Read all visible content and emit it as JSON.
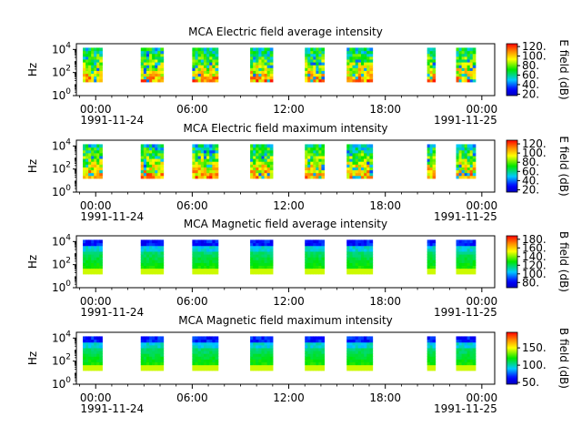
{
  "chart_data": [
    {
      "type": "heatmap",
      "title": "MCA  Electric field average intensity",
      "ylabel": "Hz",
      "yscale": "log",
      "ylim": [
        1,
        31623
      ],
      "y_ticks": [
        {
          "base": "10",
          "exp": "0"
        },
        {
          "base": "10",
          "exp": "2"
        },
        {
          "base": "10",
          "exp": "4"
        }
      ],
      "x_unit": "hours since 1991-11-24 00:00",
      "xlim": [
        -1.2,
        24.8
      ],
      "x_ticks": [
        {
          "time": "00:00",
          "date": "1991-11-24"
        },
        {
          "time": "06:00",
          "date": ""
        },
        {
          "time": "12:00",
          "date": ""
        },
        {
          "time": "18:00",
          "date": ""
        },
        {
          "time": "00:00",
          "date": "1991-11-25"
        }
      ],
      "colorbar": {
        "label": "E field (dB)",
        "range": [
          17,
          126
        ],
        "ticks": [
          "20.",
          "40.",
          "60.",
          "80.",
          "100.",
          "120."
        ],
        "tick_values": [
          20,
          40,
          60,
          80,
          100,
          120
        ]
      },
      "colormap": "rainbow",
      "profile": "electric",
      "intervals": [
        [
          -0.8,
          0.4
        ],
        [
          2.8,
          4.2
        ],
        [
          6.0,
          7.6
        ],
        [
          9.6,
          11.0
        ],
        [
          13.0,
          14.2
        ],
        [
          15.6,
          17.2
        ],
        [
          20.6,
          21.1
        ],
        [
          22.4,
          23.6
        ]
      ]
    },
    {
      "type": "heatmap",
      "title": "MCA  Electric field maximum intensity",
      "ylabel": "Hz",
      "yscale": "log",
      "ylim": [
        1,
        31623
      ],
      "y_ticks": [
        {
          "base": "10",
          "exp": "0"
        },
        {
          "base": "10",
          "exp": "2"
        },
        {
          "base": "10",
          "exp": "4"
        }
      ],
      "x_unit": "hours since 1991-11-24 00:00",
      "xlim": [
        -1.2,
        24.8
      ],
      "x_ticks": [
        {
          "time": "00:00",
          "date": "1991-11-24"
        },
        {
          "time": "06:00",
          "date": ""
        },
        {
          "time": "12:00",
          "date": ""
        },
        {
          "time": "18:00",
          "date": ""
        },
        {
          "time": "00:00",
          "date": "1991-11-25"
        }
      ],
      "colorbar": {
        "label": "E field (dB)",
        "range": [
          15,
          128
        ],
        "ticks": [
          "20.",
          "40.",
          "60.",
          "80.",
          "100.",
          "120."
        ],
        "tick_values": [
          20,
          40,
          60,
          80,
          100,
          120
        ]
      },
      "colormap": "rainbow",
      "profile": "electric",
      "intervals": [
        [
          -0.8,
          0.4
        ],
        [
          2.8,
          4.2
        ],
        [
          6.0,
          7.6
        ],
        [
          9.6,
          11.0
        ],
        [
          13.0,
          14.2
        ],
        [
          15.6,
          17.2
        ],
        [
          20.6,
          21.1
        ],
        [
          22.4,
          23.6
        ]
      ]
    },
    {
      "type": "heatmap",
      "title": "MCA  Magnetic field average intensity",
      "ylabel": "Hz",
      "yscale": "log",
      "ylim": [
        1,
        31623
      ],
      "y_ticks": [
        {
          "base": "10",
          "exp": "0"
        },
        {
          "base": "10",
          "exp": "2"
        },
        {
          "base": "10",
          "exp": "4"
        }
      ],
      "x_unit": "hours since 1991-11-24 00:00",
      "xlim": [
        -1.2,
        24.8
      ],
      "x_ticks": [
        {
          "time": "00:00",
          "date": "1991-11-24"
        },
        {
          "time": "06:00",
          "date": ""
        },
        {
          "time": "12:00",
          "date": ""
        },
        {
          "time": "18:00",
          "date": ""
        },
        {
          "time": "00:00",
          "date": "1991-11-25"
        }
      ],
      "colorbar": {
        "label": "B field (dB)",
        "range": [
          68,
          188
        ],
        "ticks": [
          "80.",
          "100.",
          "120.",
          "140.",
          "160.",
          "180."
        ],
        "tick_values": [
          80,
          100,
          120,
          140,
          160,
          180
        ]
      },
      "colormap": "rainbow",
      "profile": "magnetic",
      "intervals": [
        [
          -0.8,
          0.4
        ],
        [
          2.8,
          4.2
        ],
        [
          6.0,
          7.6
        ],
        [
          9.6,
          11.0
        ],
        [
          13.0,
          14.2
        ],
        [
          15.6,
          17.2
        ],
        [
          20.6,
          21.1
        ],
        [
          22.4,
          23.6
        ]
      ]
    },
    {
      "type": "heatmap",
      "title": "MCA  Magnetic field maximum intensity",
      "ylabel": "Hz",
      "yscale": "log",
      "ylim": [
        1,
        31623
      ],
      "y_ticks": [
        {
          "base": "10",
          "exp": "0"
        },
        {
          "base": "10",
          "exp": "2"
        },
        {
          "base": "10",
          "exp": "4"
        }
      ],
      "x_unit": "hours since 1991-11-24 00:00",
      "xlim": [
        -1.2,
        24.8
      ],
      "x_ticks": [
        {
          "time": "00:00",
          "date": "1991-11-24"
        },
        {
          "time": "06:00",
          "date": ""
        },
        {
          "time": "12:00",
          "date": ""
        },
        {
          "time": "18:00",
          "date": ""
        },
        {
          "time": "00:00",
          "date": "1991-11-25"
        }
      ],
      "colorbar": {
        "label": "B field (dB)",
        "range": [
          45,
          195
        ],
        "ticks": [
          "50.",
          "100.",
          "150."
        ],
        "tick_values": [
          50,
          100,
          150
        ]
      },
      "colormap": "rainbow",
      "profile": "magnetic",
      "intervals": [
        [
          -0.8,
          0.4
        ],
        [
          2.8,
          4.2
        ],
        [
          6.0,
          7.6
        ],
        [
          9.6,
          11.0
        ],
        [
          13.0,
          14.2
        ],
        [
          15.6,
          17.2
        ],
        [
          20.6,
          21.1
        ],
        [
          22.4,
          23.6
        ]
      ]
    }
  ]
}
